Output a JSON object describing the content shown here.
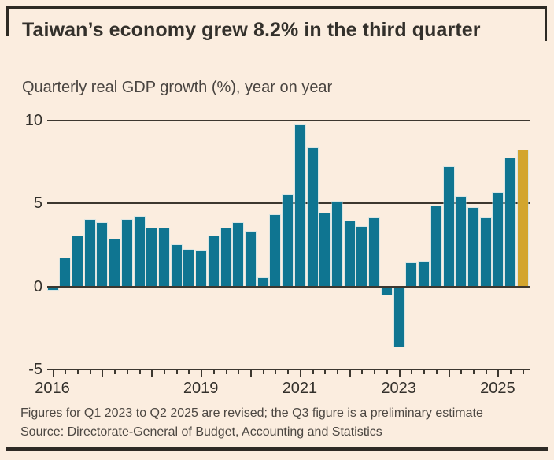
{
  "header": {
    "title": "Taiwan’s economy grew 8.2% in the third quarter",
    "subtitle": "Quarterly real GDP growth (%), year on year"
  },
  "chart_data": {
    "type": "bar",
    "title": "Taiwan’s economy grew 8.2% in the third quarter",
    "subtitle": "Quarterly real GDP growth (%), year on year",
    "unit": "%",
    "categories": [
      "Q1 2016",
      "Q2 2016",
      "Q3 2016",
      "Q4 2016",
      "Q1 2017",
      "Q2 2017",
      "Q3 2017",
      "Q4 2017",
      "Q1 2018",
      "Q2 2018",
      "Q3 2018",
      "Q4 2018",
      "Q1 2019",
      "Q2 2019",
      "Q3 2019",
      "Q4 2019",
      "Q1 2020",
      "Q2 2020",
      "Q3 2020",
      "Q4 2020",
      "Q1 2021",
      "Q2 2021",
      "Q3 2021",
      "Q4 2021",
      "Q1 2022",
      "Q2 2022",
      "Q3 2022",
      "Q4 2022",
      "Q1 2023",
      "Q2 2023",
      "Q3 2023",
      "Q4 2023",
      "Q1 2024",
      "Q2 2024",
      "Q3 2024",
      "Q4 2024",
      "Q1 2025",
      "Q2 2025",
      "Q3 2025"
    ],
    "values": [
      -0.2,
      1.7,
      3.0,
      4.0,
      3.8,
      2.8,
      4.0,
      4.2,
      3.5,
      3.5,
      2.5,
      2.2,
      2.1,
      3.0,
      3.5,
      3.8,
      3.3,
      0.5,
      4.3,
      5.5,
      9.7,
      8.3,
      4.4,
      5.1,
      3.9,
      3.6,
      4.1,
      -0.5,
      -3.6,
      1.4,
      1.5,
      4.8,
      7.2,
      5.4,
      4.7,
      4.1,
      5.6,
      7.7,
      8.2
    ],
    "highlight_index": 38,
    "highlight_meaning": "Q3 2025 preliminary estimate",
    "bar_color": "#0f7591",
    "highlight_color": "#d3a52e",
    "ylim": [
      -5,
      10
    ],
    "yticks": [
      {
        "value": 10,
        "label": "10"
      },
      {
        "value": 5,
        "label": "5"
      },
      {
        "value": 0,
        "label": "0"
      },
      {
        "value": -5,
        "label": "-5"
      }
    ],
    "xticks": [
      {
        "label": "2016",
        "quarter_index": 0
      },
      {
        "label": "2019",
        "quarter_index": 12
      },
      {
        "label": "2021",
        "quarter_index": 20
      },
      {
        "label": "2023",
        "quarter_index": 28
      },
      {
        "label": "2025",
        "quarter_index": 36
      }
    ],
    "grid": "horizontal",
    "legend": "none"
  },
  "footer": {
    "note": "Figures for Q1 2023 to Q2 2025 are revised; the Q3 figure is a preliminary estimate",
    "source": "Source: Directorate-General of Budget, Accounting and Statistics"
  }
}
